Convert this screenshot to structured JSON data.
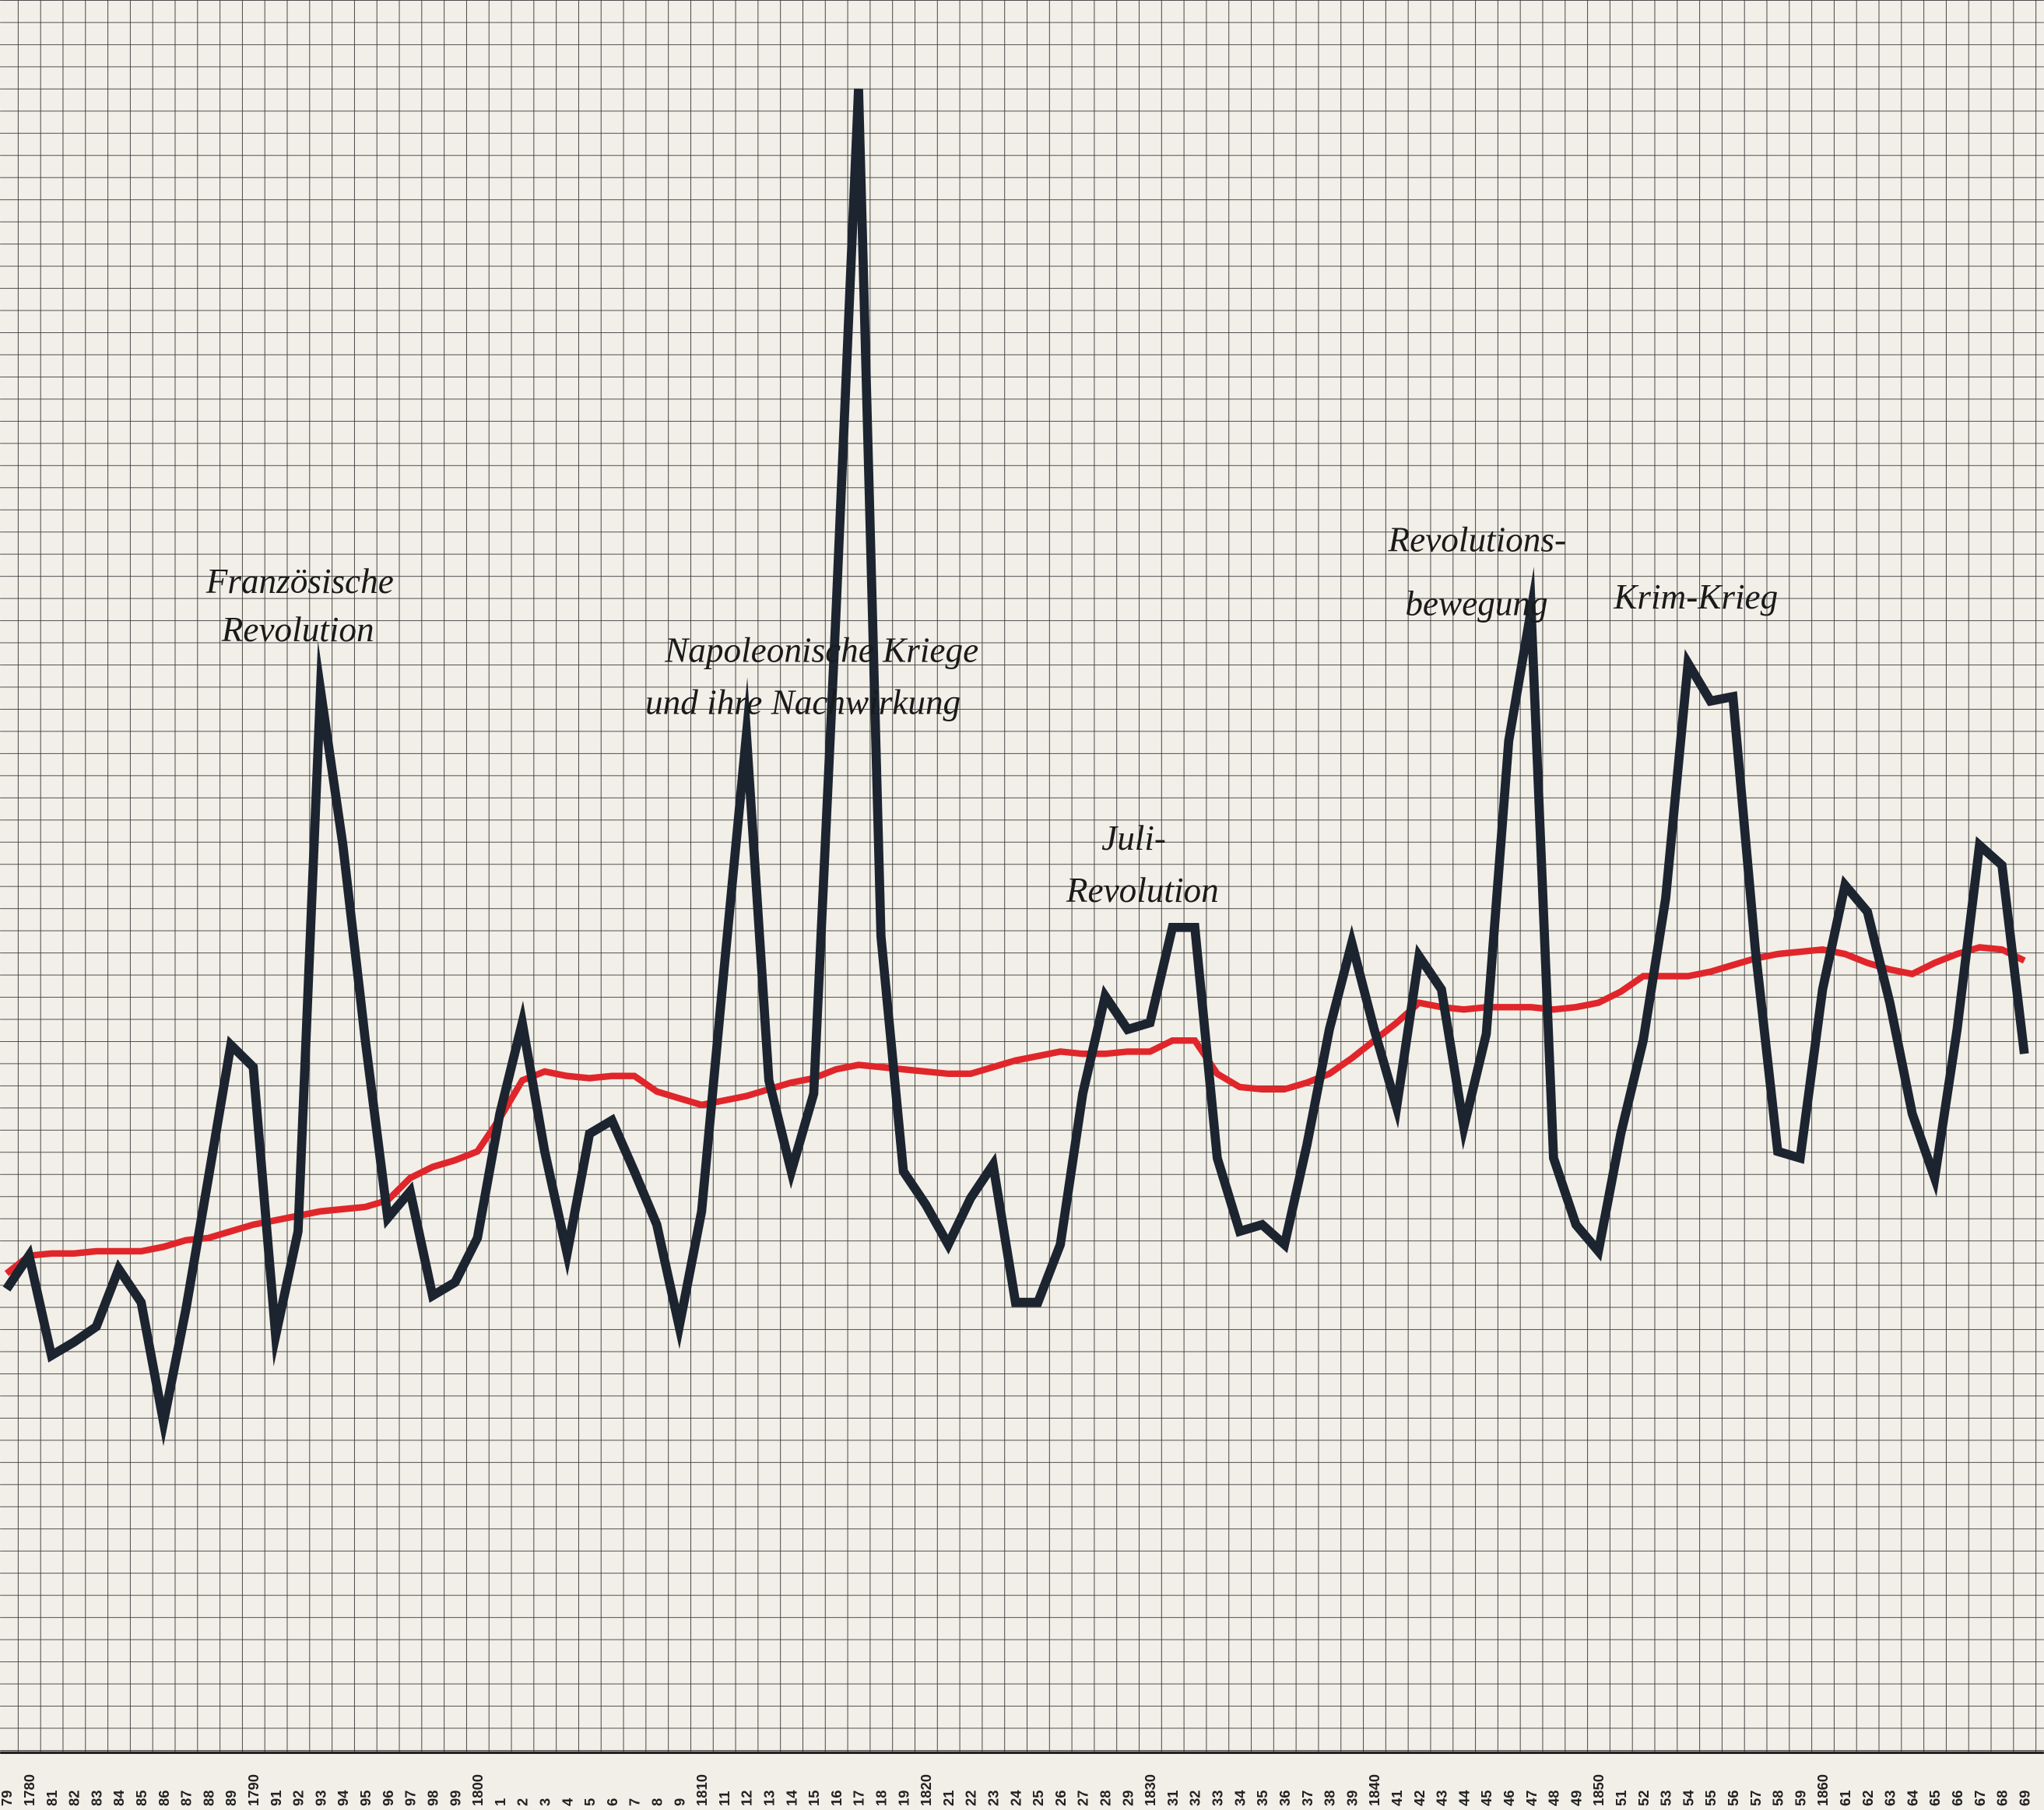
{
  "chart_data": {
    "type": "line",
    "categories": [
      "79",
      "1780",
      "81",
      "82",
      "83",
      "84",
      "85",
      "86",
      "87",
      "88",
      "89",
      "1790",
      "91",
      "92",
      "93",
      "94",
      "95",
      "96",
      "97",
      "98",
      "99",
      "1800",
      "1",
      "2",
      "3",
      "4",
      "5",
      "6",
      "7",
      "8",
      "9",
      "1810",
      "11",
      "12",
      "13",
      "14",
      "15",
      "16",
      "17",
      "18",
      "19",
      "1820",
      "21",
      "22",
      "23",
      "24",
      "25",
      "26",
      "27",
      "28",
      "29",
      "1830",
      "31",
      "32",
      "33",
      "34",
      "35",
      "36",
      "37",
      "38",
      "39",
      "1840",
      "41",
      "42",
      "43",
      "44",
      "45",
      "46",
      "47",
      "48",
      "49",
      "1850",
      "51",
      "52",
      "53",
      "54",
      "55",
      "56",
      "57",
      "58",
      "59",
      "1860",
      "61",
      "62",
      "63",
      "64",
      "65",
      "66",
      "67",
      "68",
      "69"
    ],
    "series": [
      {
        "color": "#1c2430",
        "values": [
          20.9,
          22.4,
          17.9,
          18.5,
          19.2,
          21.8,
          20.3,
          14.9,
          20.0,
          25.9,
          31.9,
          30.9,
          18.8,
          23.5,
          47.9,
          40.9,
          32.1,
          24.1,
          25.3,
          20.6,
          21.2,
          23.2,
          28.8,
          32.9,
          27.1,
          22.5,
          27.9,
          28.5,
          26.2,
          23.8,
          19.2,
          24.4,
          35.3,
          45.9,
          30.3,
          26.2,
          29.7,
          51.5,
          75.0,
          36.8,
          26.2,
          24.7,
          22.9,
          25.0,
          26.5,
          20.3,
          20.3,
          22.9,
          29.7,
          34.1,
          32.6,
          32.9,
          37.2,
          37.2,
          26.8,
          23.5,
          23.8,
          22.9,
          27.4,
          32.6,
          36.5,
          32.6,
          29.1,
          35.9,
          34.4,
          28.2,
          32.4,
          45.6,
          51.5,
          26.8,
          23.8,
          22.6,
          27.9,
          32.1,
          38.5,
          49.1,
          47.4,
          47.6,
          36.2,
          27.1,
          26.8,
          34.4,
          39.1,
          37.9,
          33.8,
          28.8,
          25.9,
          32.6,
          40.9,
          40.0,
          31.5
        ]
      },
      {
        "color": "#e0262a",
        "values": [
          21.6,
          22.4,
          22.5,
          22.5,
          22.6,
          22.6,
          22.6,
          22.8,
          23.1,
          23.2,
          23.5,
          23.8,
          24.0,
          24.2,
          24.4,
          24.5,
          24.6,
          24.9,
          25.9,
          26.4,
          26.7,
          27.1,
          28.6,
          30.3,
          30.7,
          30.5,
          30.4,
          30.5,
          30.5,
          29.8,
          29.5,
          29.2,
          29.4,
          29.6,
          29.9,
          30.2,
          30.4,
          30.8,
          31.0,
          30.9,
          30.8,
          30.7,
          30.6,
          30.6,
          30.9,
          31.2,
          31.4,
          31.6,
          31.5,
          31.5,
          31.6,
          31.6,
          32.1,
          32.1,
          30.6,
          30.0,
          29.9,
          29.9,
          30.2,
          30.6,
          31.3,
          32.1,
          32.9,
          33.8,
          33.6,
          33.5,
          33.6,
          33.6,
          33.6,
          33.5,
          33.6,
          33.8,
          34.3,
          35.0,
          35.0,
          35.0,
          35.2,
          35.5,
          35.8,
          36.0,
          36.1,
          36.2,
          36.0,
          35.6,
          35.3,
          35.1,
          35.6,
          36.0,
          36.3,
          36.2,
          35.7
        ]
      }
    ],
    "ylim": [
      0,
      79
    ],
    "annotations": [
      {
        "lines": [
          "Französische",
          "Revolution"
        ]
      },
      {
        "lines": [
          "Napoleonische Kriege",
          "und ihre Nachwirkung"
        ]
      },
      {
        "lines": [
          "Juli-",
          "Revolution"
        ]
      },
      {
        "lines": [
          "Revolutions-",
          "bewegung"
        ]
      },
      {
        "lines": [
          "Krim-Krieg"
        ]
      }
    ]
  }
}
